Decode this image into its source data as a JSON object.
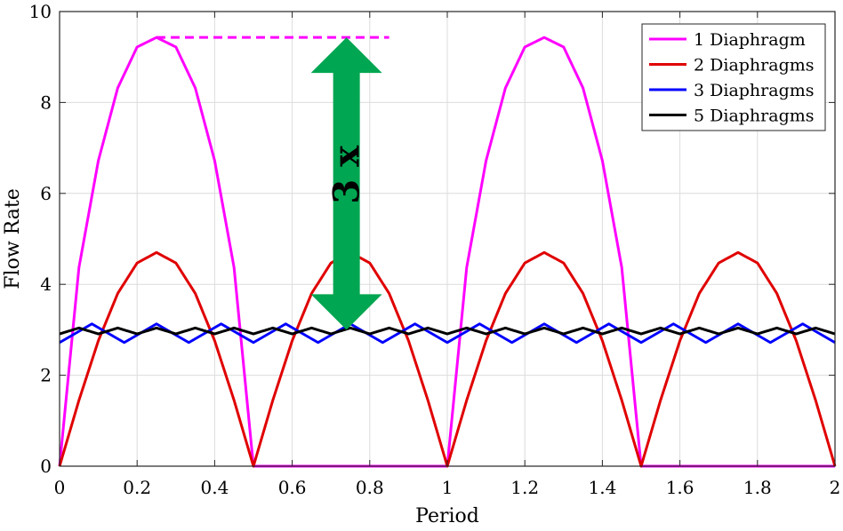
{
  "chart_data": {
    "type": "line",
    "title": "",
    "xlabel": "Period",
    "ylabel": "Flow Rate",
    "xlim": [
      0,
      2
    ],
    "ylim": [
      0,
      10
    ],
    "xticks": [
      0,
      0.2,
      0.4,
      0.6,
      0.8,
      1,
      1.2,
      1.4,
      1.6,
      1.8,
      2
    ],
    "xtick_labels": [
      "0",
      "0.2",
      "0.4",
      "0.6",
      "0.8",
      "1",
      "1.2",
      "1.4",
      "1.6",
      "1.8",
      "2"
    ],
    "yticks": [
      0,
      2,
      4,
      6,
      8,
      10
    ],
    "ytick_labels": [
      "0",
      "2",
      "4",
      "6",
      "8",
      "10"
    ],
    "grid": true,
    "legend_position": "top-right",
    "series": [
      {
        "name": "1 Diaphragm",
        "color": "#ff00ff",
        "x": [
          0,
          0.05,
          0.1,
          0.15,
          0.2,
          0.25,
          0.3,
          0.35,
          0.4,
          0.45,
          0.5,
          0.6,
          0.7,
          0.8,
          0.9,
          1.0,
          1.05,
          1.1,
          1.15,
          1.2,
          1.25,
          1.3,
          1.35,
          1.4,
          1.45,
          1.5,
          1.6,
          1.7,
          1.8,
          1.9,
          2.0
        ],
        "y": [
          0,
          4.37,
          6.72,
          8.32,
          9.22,
          9.43,
          9.22,
          8.32,
          6.72,
          4.37,
          0,
          0,
          0,
          0,
          0,
          0,
          4.37,
          6.72,
          8.32,
          9.22,
          9.43,
          9.22,
          8.32,
          6.72,
          4.37,
          0,
          0,
          0,
          0,
          0,
          0
        ]
      },
      {
        "name": "2 Diaphragms",
        "color": "#e00000",
        "x": [
          0,
          0.05,
          0.1,
          0.15,
          0.2,
          0.25,
          0.3,
          0.35,
          0.4,
          0.45,
          0.5,
          0.55,
          0.6,
          0.65,
          0.7,
          0.75,
          0.8,
          0.85,
          0.9,
          0.95,
          1.0,
          1.05,
          1.1,
          1.15,
          1.2,
          1.25,
          1.3,
          1.35,
          1.4,
          1.45,
          1.5,
          1.55,
          1.6,
          1.65,
          1.7,
          1.75,
          1.8,
          1.85,
          1.9,
          1.95,
          2.0
        ],
        "y": [
          0,
          1.45,
          2.76,
          3.8,
          4.47,
          4.7,
          4.47,
          3.8,
          2.76,
          1.45,
          0,
          1.45,
          2.76,
          3.8,
          4.47,
          4.7,
          4.47,
          3.8,
          2.76,
          1.45,
          0,
          1.45,
          2.76,
          3.8,
          4.47,
          4.7,
          4.47,
          3.8,
          2.76,
          1.45,
          0,
          1.45,
          2.76,
          3.8,
          4.47,
          4.7,
          4.47,
          3.8,
          2.76,
          1.45,
          0
        ]
      },
      {
        "name": "3 Diaphragms",
        "color": "#0000ff",
        "x": [
          0,
          0.0833,
          0.1667,
          0.25,
          0.3333,
          0.4167,
          0.5,
          0.5833,
          0.6667,
          0.75,
          0.8333,
          0.9167,
          1.0,
          1.0833,
          1.1667,
          1.25,
          1.3333,
          1.4167,
          1.5,
          1.5833,
          1.6667,
          1.75,
          1.8333,
          1.9167,
          2.0
        ],
        "y": [
          2.72,
          3.13,
          2.72,
          3.13,
          2.72,
          3.13,
          2.72,
          3.13,
          2.72,
          3.13,
          2.72,
          3.13,
          2.72,
          3.13,
          2.72,
          3.13,
          2.72,
          3.13,
          2.72,
          3.13,
          2.72,
          3.13,
          2.72,
          3.13,
          2.72
        ]
      },
      {
        "name": "5 Diaphragms",
        "color": "#000000",
        "x": [
          0,
          0.05,
          0.1,
          0.15,
          0.2,
          0.25,
          0.3,
          0.35,
          0.4,
          0.45,
          0.5,
          0.55,
          0.6,
          0.65,
          0.7,
          0.75,
          0.8,
          0.85,
          0.9,
          0.95,
          1.0,
          1.05,
          1.1,
          1.15,
          1.2,
          1.25,
          1.3,
          1.35,
          1.4,
          1.45,
          1.5,
          1.55,
          1.6,
          1.65,
          1.7,
          1.75,
          1.8,
          1.85,
          1.9,
          1.95,
          2.0
        ],
        "y": [
          2.91,
          3.04,
          2.91,
          3.04,
          2.91,
          3.04,
          2.91,
          3.04,
          2.91,
          3.04,
          2.91,
          3.04,
          2.91,
          3.04,
          2.91,
          3.04,
          2.91,
          3.04,
          2.91,
          3.04,
          2.91,
          3.04,
          2.91,
          3.04,
          2.91,
          3.04,
          2.91,
          3.04,
          2.91,
          3.04,
          2.91,
          3.04,
          2.91,
          3.04,
          2.91,
          3.04,
          2.91,
          3.04,
          2.91,
          3.04,
          2.91
        ]
      }
    ],
    "annotations": {
      "reference_line": {
        "y": 9.43,
        "x_start": 0.25,
        "x_end": 0.85,
        "color": "#ff00ff",
        "style": "dashed"
      },
      "arrow": {
        "x": 0.74,
        "y_start": 3.0,
        "y_end": 9.43,
        "color": "#00a651",
        "label": "3 x"
      }
    }
  }
}
